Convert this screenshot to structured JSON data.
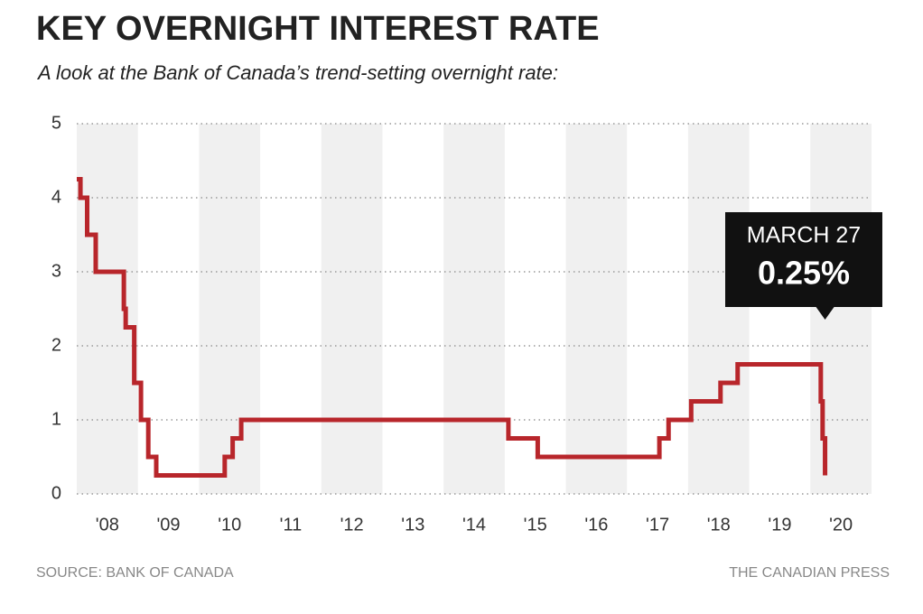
{
  "chart_data": {
    "type": "line",
    "step": "post",
    "title": "KEY OVERNIGHT INTEREST RATE",
    "subtitle": "A look at the Bank of Canada’s trend-setting overnight rate:",
    "source": "SOURCE: BANK OF CANADA",
    "credit": "THE CANADIAN PRESS",
    "xlim": [
      2008,
      2021
    ],
    "xticks": [
      {
        "value": 2008.5,
        "label": "'08"
      },
      {
        "value": 2009.5,
        "label": "'09"
      },
      {
        "value": 2010.5,
        "label": "'10"
      },
      {
        "value": 2011.5,
        "label": "'11"
      },
      {
        "value": 2012.5,
        "label": "'12"
      },
      {
        "value": 2013.5,
        "label": "'13"
      },
      {
        "value": 2014.5,
        "label": "'14"
      },
      {
        "value": 2015.5,
        "label": "'15"
      },
      {
        "value": 2016.5,
        "label": "'16"
      },
      {
        "value": 2017.5,
        "label": "'17"
      },
      {
        "value": 2018.5,
        "label": "'18"
      },
      {
        "value": 2019.5,
        "label": "'19"
      },
      {
        "value": 2020.5,
        "label": "'20"
      }
    ],
    "ylim": [
      0,
      5
    ],
    "yticks": [
      0,
      1,
      2,
      3,
      4,
      5
    ],
    "grid": true,
    "series": [
      {
        "color": "#b8262b",
        "x": [
          2008,
          2008.06,
          2008.17,
          2008.31,
          2008.77,
          2008.8,
          2008.94,
          2009.05,
          2009.17,
          2009.3,
          2010.42,
          2010.55,
          2010.69,
          2015.06,
          2015.54,
          2017.53,
          2017.68,
          2018.05,
          2018.53,
          2018.81,
          2020.17,
          2020.2,
          2020.24
        ],
        "values": [
          4.25,
          4,
          3.5,
          3,
          2.5,
          2.25,
          1.5,
          1,
          0.5,
          0.25,
          0.5,
          0.75,
          1,
          0.75,
          0.5,
          0.75,
          1,
          1.25,
          1.5,
          1.75,
          1.25,
          0.75,
          0.25
        ]
      }
    ],
    "annotation": {
      "date": "MARCH 27",
      "value_label": "0.25%"
    }
  }
}
